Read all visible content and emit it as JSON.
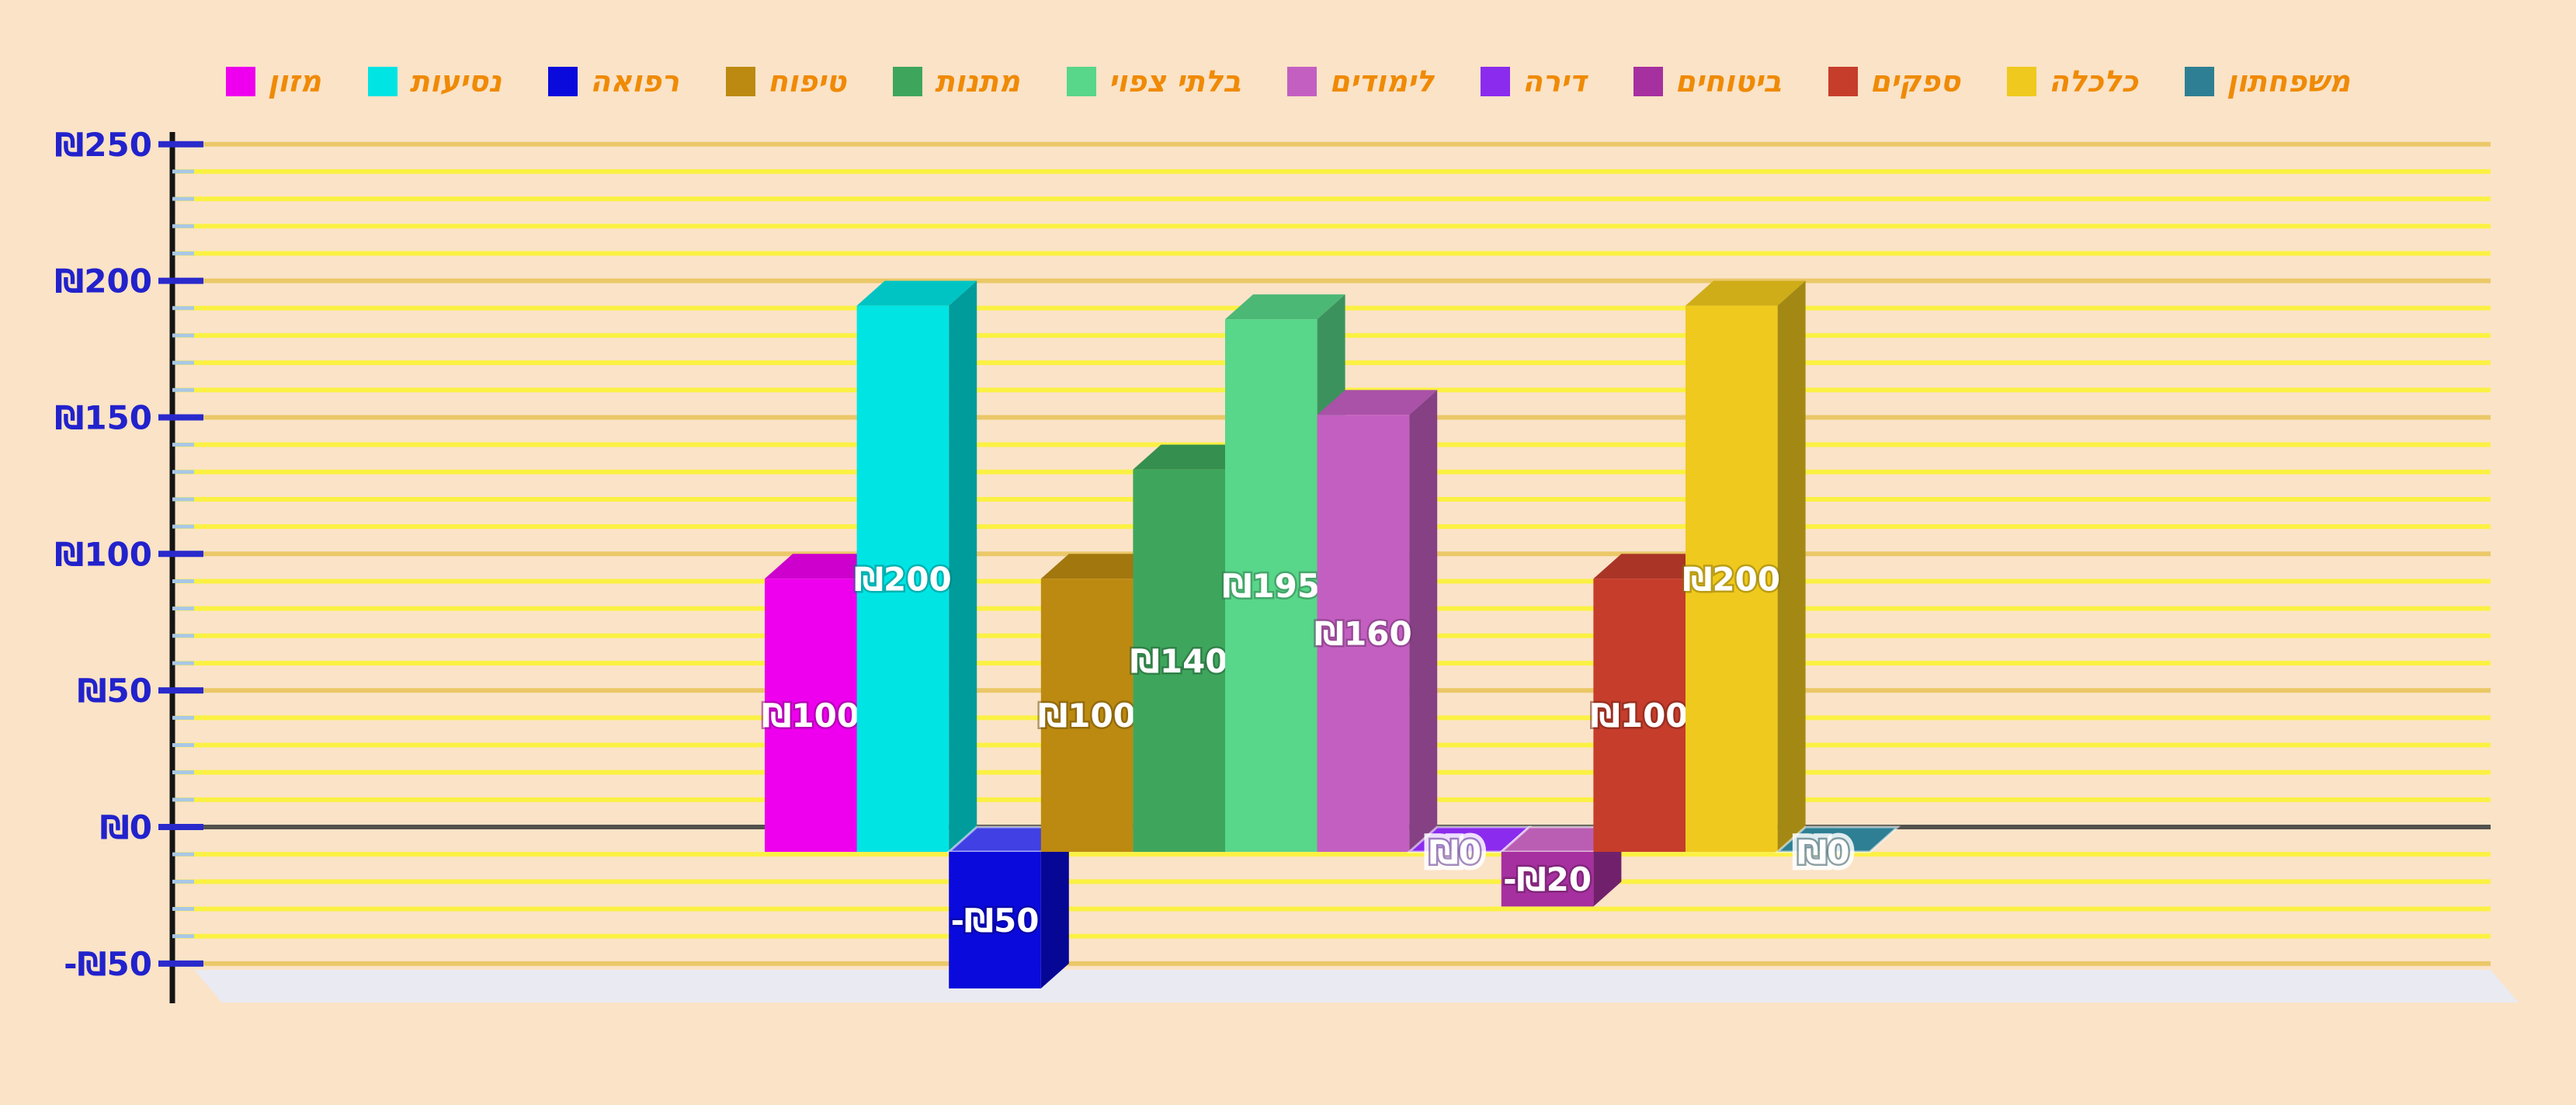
{
  "app": {
    "background_color": "#FBE3C7"
  },
  "legend": {
    "position": "top",
    "text_color": "#EF8A05",
    "items": [
      {
        "name": "food",
        "label": "מזון",
        "color": "#EE00EE"
      },
      {
        "name": "travel",
        "label": "נסיעות",
        "color": "#00E4E4"
      },
      {
        "name": "medicine",
        "label": "רפואה",
        "color": "#0A0ADC"
      },
      {
        "name": "grooming",
        "label": "טיפוח",
        "color": "#BC8A10"
      },
      {
        "name": "gifts",
        "label": "מתנות",
        "color": "#3EA65C"
      },
      {
        "name": "unexpected",
        "label": "בלתי צפוי",
        "color": "#58D689"
      },
      {
        "name": "studies",
        "label": "לימודים",
        "color": "#C45FC2"
      },
      {
        "name": "apartment",
        "label": "דירה",
        "color": "#8B2BEE"
      },
      {
        "name": "insurance",
        "label": "ביטוחים",
        "color": "#A6309F"
      },
      {
        "name": "suppliers",
        "label": "ספקים",
        "color": "#C63D2B"
      },
      {
        "name": "groceries",
        "label": "כלכלה",
        "color": "#EFC91D"
      },
      {
        "name": "daycare",
        "label": "משפחתון",
        "color": "#2E7F93"
      }
    ]
  },
  "chart_data": {
    "type": "bar",
    "style": "3d-column",
    "title": "",
    "xlabel": "",
    "ylabel": "",
    "currency_symbol": "₪",
    "categories": [
      "מזון",
      "נסיעות",
      "רפואה",
      "טיפוח",
      "מתנות",
      "בלתי צפוי",
      "לימודים",
      "דירה",
      "ביטוחים",
      "ספקים",
      "כלכלה",
      "משפחתון"
    ],
    "values": [
      100,
      200,
      -50,
      100,
      140,
      195,
      160,
      0,
      -20,
      100,
      200,
      0
    ],
    "bar_value_labels": [
      "₪100",
      "₪200",
      "-₪50",
      "₪100",
      "₪140",
      "₪195",
      "₪160",
      "₪0",
      "-₪20",
      "₪100",
      "₪200",
      "₪0"
    ],
    "bar_colors": [
      "#EE00EE",
      "#00E4E4",
      "#0A0ADC",
      "#BC8A10",
      "#3EA65C",
      "#58D689",
      "#C45FC2",
      "#8B2BEE",
      "#A6309F",
      "#C63D2B",
      "#EFC91D",
      "#2E7F93"
    ],
    "bar_label_text_color": "#FFFFFF",
    "ylim": [
      -50,
      250
    ],
    "y_major_step": 50,
    "y_minor_step": 10,
    "y_ticks": [
      {
        "value": 250,
        "label": "₪250"
      },
      {
        "value": 200,
        "label": "₪200"
      },
      {
        "value": 150,
        "label": "₪150"
      },
      {
        "value": 100,
        "label": "₪100"
      },
      {
        "value": 50,
        "label": "₪50"
      },
      {
        "value": 0,
        "label": "₪0"
      },
      {
        "value": -50,
        "label": "-₪50"
      }
    ],
    "grid": {
      "show": true,
      "minor_color": "#FBF143",
      "major_color": "#EBC868",
      "zero_line_color": "#52524C",
      "floor_color": "#EAEAF2"
    },
    "axis": {
      "line_color": "#151515",
      "major_tick_color": "#2A2ACC",
      "minor_tick_color": "#A9C7E7",
      "tick_label_color": "#2222CC"
    },
    "legend_position": "top"
  }
}
